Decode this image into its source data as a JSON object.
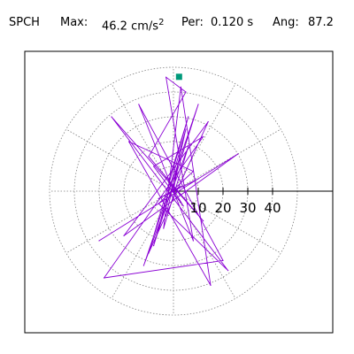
{
  "header": {
    "station": "SPCH",
    "max_label": "Max:",
    "max_value": "46.2",
    "max_unit": "cm/s",
    "max_exp": "2",
    "per_label": "Per:",
    "per_value": "0.120 s",
    "ang_label": "Ang:",
    "ang_value": "87.2"
  },
  "colors": {
    "trace": "#8a00d4",
    "marker": "#00997a",
    "grid": "#808080",
    "axis": "#000000",
    "frame": "#000000"
  },
  "chart_data": {
    "type": "scatter",
    "title": "",
    "xlabel": "",
    "ylabel": "",
    "polar": true,
    "r_ticks": [
      10,
      20,
      30,
      40
    ],
    "r_max": 50,
    "grid": true,
    "grid_angle_step_deg": 30,
    "peak_marker": {
      "angle_deg": 87.2,
      "r": 46.2
    },
    "series": [
      {
        "x": [
          0,
          2,
          -3,
          5,
          -8,
          10,
          -12,
          6,
          -4,
          3,
          15,
          -18,
          8,
          -6,
          22,
          -25,
          12,
          -10,
          5,
          -3,
          8,
          -14,
          20,
          -28,
          12,
          -8,
          4,
          -2,
          6,
          -10,
          14,
          -20,
          26,
          -30,
          10,
          -6,
          3,
          0
        ],
        "y": [
          0,
          12,
          -10,
          25,
          -22,
          35,
          -30,
          18,
          -15,
          42,
          -38,
          20,
          8,
          -5,
          -32,
          30,
          -12,
          14,
          40,
          46,
          -20,
          35,
          -28,
          -35,
          22,
          10,
          -6,
          4,
          30,
          -25,
          28,
          -18,
          15,
          -20,
          5,
          -3,
          2,
          0
        ]
      }
    ]
  }
}
